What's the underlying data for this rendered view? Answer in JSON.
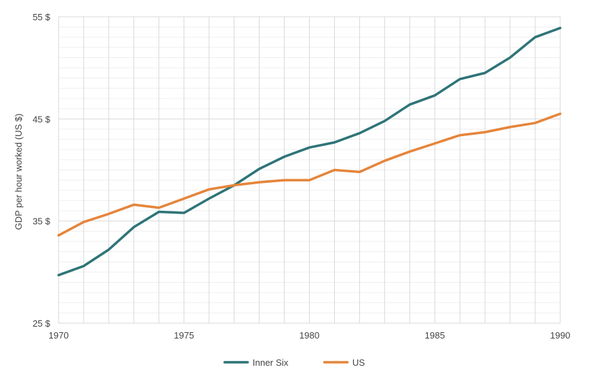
{
  "chart_data": {
    "type": "line",
    "title": "",
    "xlabel": "",
    "ylabel": "GDP per hour worked (US $)",
    "xlim": [
      1970,
      1990
    ],
    "ylim": [
      25,
      55
    ],
    "x_ticks": [
      1970,
      1975,
      1980,
      1985,
      1990
    ],
    "x_tick_labels": [
      "1970",
      "1975",
      "1980",
      "1985",
      "1990"
    ],
    "y_ticks": [
      25,
      35,
      45,
      55
    ],
    "y_tick_labels": [
      "25 $",
      "35 $",
      "45 $",
      "55 $"
    ],
    "grid": true,
    "legend_position": "bottom-center",
    "x": [
      1970,
      1971,
      1972,
      1973,
      1974,
      1975,
      1976,
      1977,
      1978,
      1979,
      1980,
      1981,
      1982,
      1983,
      1984,
      1985,
      1986,
      1987,
      1988,
      1989,
      1990
    ],
    "series": [
      {
        "name": "Inner Six",
        "color": "#2e7478",
        "values": [
          29.7,
          30.6,
          32.2,
          34.4,
          35.9,
          35.8,
          37.2,
          38.5,
          40.1,
          41.3,
          42.2,
          42.7,
          43.6,
          44.8,
          46.4,
          47.3,
          48.9,
          49.5,
          51.0,
          53.0,
          53.9
        ]
      },
      {
        "name": "US",
        "color": "#e5853b",
        "values": [
          33.6,
          34.9,
          35.7,
          36.6,
          36.3,
          37.2,
          38.1,
          38.5,
          38.8,
          39.0,
          39.0,
          40.0,
          39.8,
          40.9,
          41.8,
          42.6,
          43.4,
          43.7,
          44.2,
          44.6,
          45.5
        ]
      }
    ]
  }
}
